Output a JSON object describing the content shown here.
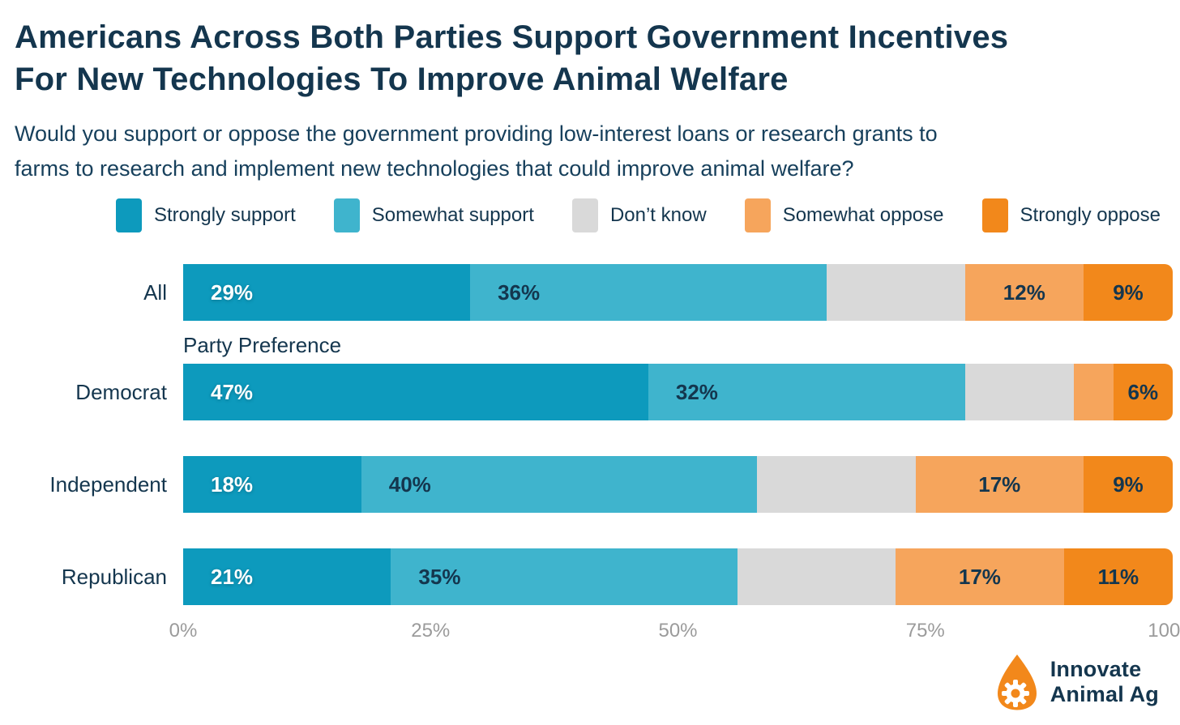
{
  "title": {
    "line1": "Americans Across Both Parties Support Government Incentives",
    "line2": "For New Technologies To Improve Animal Welfare"
  },
  "subtitle": {
    "line1": "Would you support or oppose the government providing low-interest loans or research grants to",
    "line2": "farms to research and implement new technologies that could improve animal welfare?"
  },
  "colors": {
    "strongly_support": "#0D9ABD",
    "somewhat_support": "#3FB4CD",
    "dont_know": "#D9D9D9",
    "somewhat_oppose": "#F6A55C",
    "strongly_oppose": "#F2881B",
    "navy_text": "#14364E",
    "axis_gray": "#9B9B9B"
  },
  "chart_data": {
    "type": "bar",
    "orientation": "horizontal-stacked",
    "group_label": "Party Preference",
    "categories": [
      "All",
      "Democrat",
      "Independent",
      "Republican"
    ],
    "series": [
      {
        "name": "Strongly support",
        "color": "#0D9ABD",
        "label_color": "light",
        "label_align": "align-left",
        "values": [
          29,
          47,
          18,
          21
        ],
        "value_labels": [
          "29%",
          "47%",
          "18%",
          "21%"
        ]
      },
      {
        "name": "Somewhat support",
        "color": "#3FB4CD",
        "label_color": "dark",
        "label_align": "align-left",
        "values": [
          36,
          32,
          40,
          35
        ],
        "value_labels": [
          "36%",
          "32%",
          "40%",
          "35%"
        ]
      },
      {
        "name": "Don’t know",
        "color": "#D9D9D9",
        "label_color": "dark",
        "label_align": "align-center",
        "values": [
          14,
          11,
          16,
          16
        ],
        "value_labels": [
          "",
          "",
          "",
          ""
        ]
      },
      {
        "name": "Somewhat oppose",
        "color": "#F6A55C",
        "label_color": "dark",
        "label_align": "align-center",
        "values": [
          12,
          4,
          17,
          17
        ],
        "value_labels": [
          "12%",
          "",
          "17%",
          "17%"
        ]
      },
      {
        "name": "Strongly oppose",
        "color": "#F2881B",
        "label_color": "dark",
        "label_align": "align-center",
        "values": [
          9,
          6,
          9,
          11
        ],
        "value_labels": [
          "9%",
          "6%",
          "9%",
          "11%"
        ]
      }
    ],
    "x_ticks": [
      "0%",
      "25%",
      "50%",
      "75%",
      "100%"
    ],
    "x_tick_positions": [
      0,
      25,
      50,
      75,
      100
    ],
    "xlim": [
      0,
      100
    ],
    "grid": false,
    "legend_position": "top"
  },
  "logo": {
    "line1": "Innovate",
    "line2": "Animal Ag",
    "egg_color": "#F2881B"
  }
}
